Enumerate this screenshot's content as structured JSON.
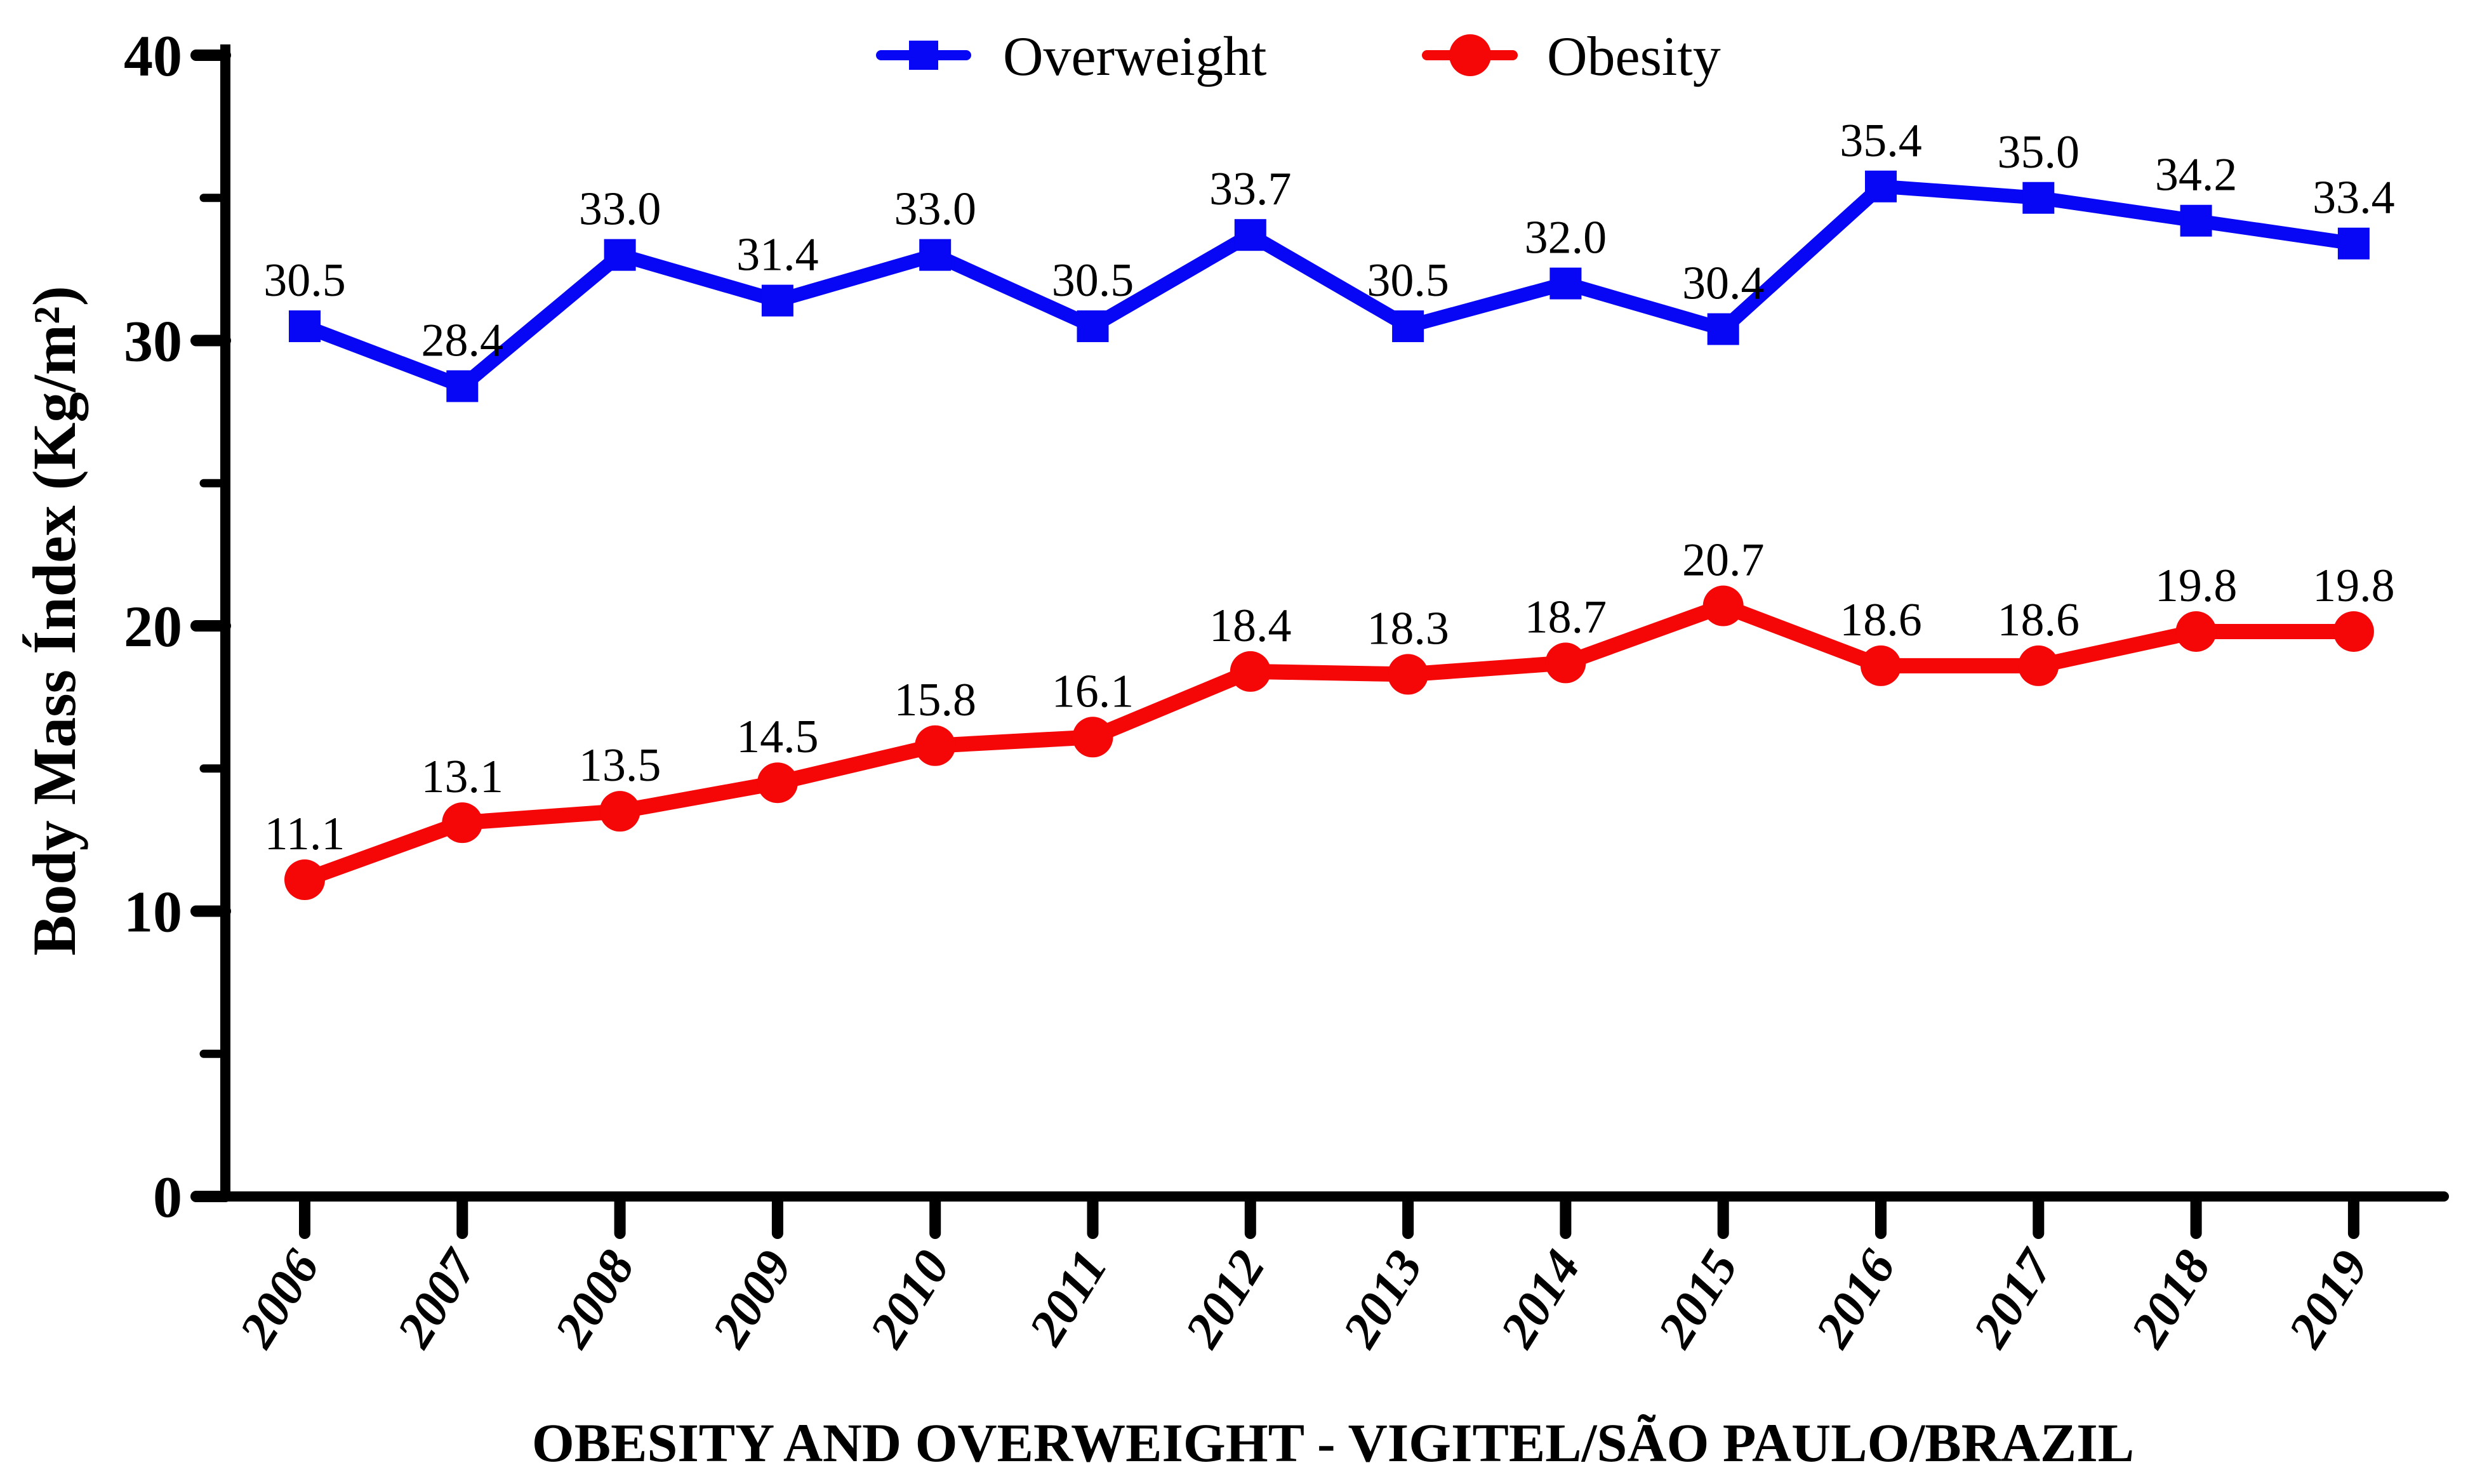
{
  "figure": {
    "background": "#ffffff",
    "axis_color": "#000000"
  },
  "legend": [
    {
      "label": "Overweight",
      "color": "#0707F5",
      "marker": "square"
    },
    {
      "label": "Obesity",
      "color": "#F50707",
      "marker": "circle"
    }
  ],
  "chart_data": {
    "type": "line",
    "title": "OBESITY AND OVERWEIGHT -  VIGITEL/SÃO PAULO/BRAZIL",
    "xlabel": "OBESITY AND OVERWEIGHT -  VIGITEL/SÃO PAULO/BRAZIL",
    "ylabel": "Body Mass Índex (Kg/m²)",
    "categories": [
      "2006",
      "2007",
      "2008",
      "2009",
      "2010",
      "2011",
      "2012",
      "2013",
      "2014",
      "2015",
      "2016",
      "2017",
      "2018",
      "2019"
    ],
    "series": [
      {
        "name": "Overweight",
        "color": "#0707F5",
        "marker": "square",
        "values": [
          30.5,
          28.4,
          33.0,
          31.4,
          33.0,
          30.5,
          33.7,
          30.5,
          32.0,
          30.4,
          35.4,
          35.0,
          34.2,
          33.4
        ]
      },
      {
        "name": "Obesity",
        "color": "#F50707",
        "marker": "circle",
        "values": [
          11.1,
          13.1,
          13.5,
          14.5,
          15.8,
          16.1,
          18.4,
          18.3,
          18.7,
          20.7,
          18.6,
          18.6,
          19.8,
          19.8
        ]
      }
    ],
    "ylim": [
      0,
      40
    ],
    "y_major_ticks": [
      0,
      10,
      20,
      30,
      40
    ],
    "y_minor_ticks": [
      5,
      15,
      25,
      35
    ],
    "value_label_decimals": 1,
    "legend_position": "top",
    "grid": false
  }
}
